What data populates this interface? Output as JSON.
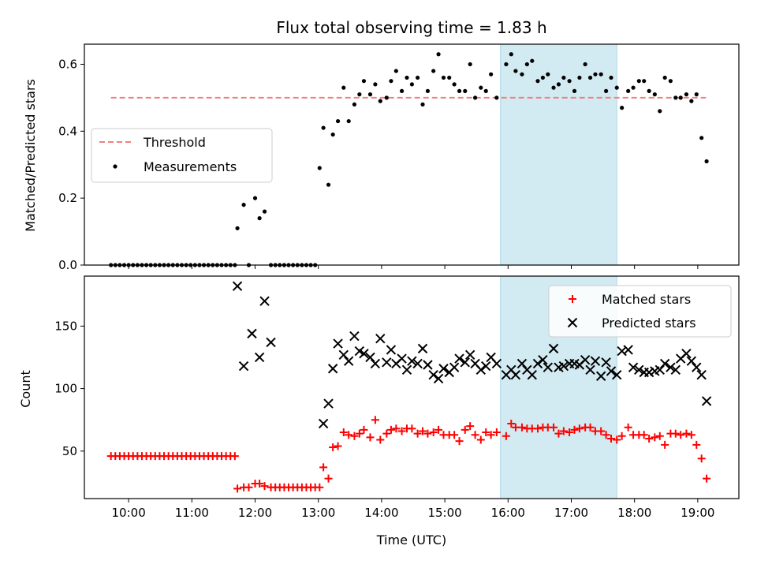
{
  "chart_data": [
    {
      "type": "scatter",
      "title": "Flux total observing time = 1.83 h",
      "xlabel": "",
      "ylabel": "Matched/Predicted stars",
      "ylim": [
        0,
        0.66
      ],
      "yticks": [
        0.0,
        0.2,
        0.4,
        0.6
      ],
      "ytick_labels": [
        "0.0",
        "0.2",
        "0.4",
        "0.6"
      ],
      "xlim": [
        9.3,
        19.65
      ],
      "xticks": [
        10,
        11,
        12,
        13,
        14,
        15,
        16,
        17,
        18,
        19
      ],
      "legend": {
        "position": "center-left",
        "entries": [
          "Threshold",
          "Measurements"
        ]
      },
      "highlight_span": {
        "x_start": 15.88,
        "x_end": 17.72,
        "color": "#add8e6"
      },
      "threshold": {
        "name": "Threshold",
        "y": 0.5,
        "x_start": 9.72,
        "x_end": 19.13,
        "color": "#f08080"
      },
      "series": [
        {
          "name": "Measurements",
          "color": "#000000",
          "marker": "dot",
          "x": [
            9.72,
            9.79,
            9.86,
            9.93,
            10.0,
            10.07,
            10.14,
            10.21,
            10.28,
            10.35,
            10.42,
            10.49,
            10.56,
            10.63,
            10.7,
            10.77,
            10.84,
            10.91,
            10.98,
            11.05,
            11.12,
            11.19,
            11.26,
            11.33,
            11.4,
            11.47,
            11.54,
            11.61,
            11.68,
            11.72,
            11.82,
            11.9,
            12.0,
            12.07,
            12.15,
            12.25,
            12.32,
            12.39,
            12.46,
            12.53,
            12.6,
            12.67,
            12.74,
            12.81,
            12.88,
            12.95,
            13.02,
            13.08,
            13.16,
            13.23,
            13.31,
            13.4,
            13.48,
            13.57,
            13.65,
            13.72,
            13.82,
            13.9,
            13.98,
            14.08,
            14.15,
            14.23,
            14.32,
            14.4,
            14.48,
            14.57,
            14.65,
            14.73,
            14.82,
            14.9,
            14.98,
            15.07,
            15.15,
            15.23,
            15.32,
            15.4,
            15.48,
            15.57,
            15.65,
            15.73,
            15.82,
            15.97,
            16.05,
            16.12,
            16.22,
            16.3,
            16.38,
            16.47,
            16.55,
            16.63,
            16.72,
            16.8,
            16.88,
            16.97,
            17.05,
            17.13,
            17.22,
            17.3,
            17.38,
            17.47,
            17.55,
            17.63,
            17.72,
            17.8,
            17.9,
            17.98,
            18.07,
            18.15,
            18.23,
            18.32,
            18.4,
            18.48,
            18.57,
            18.65,
            18.73,
            18.82,
            18.9,
            18.98,
            19.06,
            19.14
          ],
          "y": [
            0,
            0,
            0,
            0,
            0,
            0,
            0,
            0,
            0,
            0,
            0,
            0,
            0,
            0,
            0,
            0,
            0,
            0,
            0,
            0,
            0,
            0,
            0,
            0,
            0,
            0,
            0,
            0,
            0,
            0.11,
            0.18,
            0,
            0.2,
            0.14,
            0.16,
            0,
            0,
            0,
            0,
            0,
            0,
            0,
            0,
            0,
            0,
            0,
            0.29,
            0.41,
            0.24,
            0.39,
            0.43,
            0.53,
            0.43,
            0.48,
            0.51,
            0.55,
            0.51,
            0.54,
            0.49,
            0.5,
            0.55,
            0.58,
            0.52,
            0.56,
            0.54,
            0.56,
            0.48,
            0.52,
            0.58,
            0.63,
            0.56,
            0.56,
            0.54,
            0.52,
            0.52,
            0.6,
            0.5,
            0.53,
            0.52,
            0.57,
            0.5,
            0.6,
            0.63,
            0.58,
            0.57,
            0.6,
            0.61,
            0.55,
            0.56,
            0.57,
            0.53,
            0.54,
            0.56,
            0.55,
            0.52,
            0.56,
            0.6,
            0.56,
            0.57,
            0.57,
            0.52,
            0.56,
            0.53,
            0.47,
            0.52,
            0.53,
            0.55,
            0.55,
            0.52,
            0.51,
            0.46,
            0.56,
            0.55,
            0.5,
            0.5,
            0.51,
            0.49,
            0.51,
            0.38,
            0.31
          ]
        }
      ]
    },
    {
      "type": "scatter",
      "title": "",
      "xlabel": "Time (UTC)",
      "ylabel": "Count",
      "ylim": [
        12,
        190
      ],
      "yticks": [
        50,
        100,
        150
      ],
      "ytick_labels": [
        "50",
        "100",
        "150"
      ],
      "xlim": [
        9.3,
        19.65
      ],
      "xticks": [
        10,
        11,
        12,
        13,
        14,
        15,
        16,
        17,
        18,
        19
      ],
      "xtick_labels": [
        "10:00",
        "11:00",
        "12:00",
        "13:00",
        "14:00",
        "15:00",
        "16:00",
        "17:00",
        "18:00",
        "19:00"
      ],
      "legend": {
        "position": "top-right",
        "entries": [
          "Matched stars",
          "Predicted stars"
        ]
      },
      "highlight_span": {
        "x_start": 15.88,
        "x_end": 17.72,
        "color": "#add8e6"
      },
      "series": [
        {
          "name": "Matched stars",
          "color": "#ff0000",
          "marker": "plus",
          "x": [
            9.72,
            9.79,
            9.86,
            9.93,
            10.0,
            10.07,
            10.14,
            10.21,
            10.28,
            10.35,
            10.42,
            10.49,
            10.56,
            10.63,
            10.7,
            10.77,
            10.84,
            10.91,
            10.98,
            11.05,
            11.12,
            11.19,
            11.26,
            11.33,
            11.4,
            11.47,
            11.54,
            11.61,
            11.68,
            11.72,
            11.82,
            11.9,
            12.0,
            12.07,
            12.15,
            12.25,
            12.32,
            12.39,
            12.46,
            12.53,
            12.6,
            12.67,
            12.74,
            12.81,
            12.88,
            12.95,
            13.02,
            13.08,
            13.16,
            13.23,
            13.31,
            13.4,
            13.48,
            13.57,
            13.65,
            13.72,
            13.82,
            13.9,
            13.98,
            14.08,
            14.15,
            14.23,
            14.32,
            14.4,
            14.48,
            14.57,
            14.65,
            14.73,
            14.82,
            14.9,
            14.98,
            15.07,
            15.15,
            15.23,
            15.32,
            15.4,
            15.48,
            15.57,
            15.65,
            15.73,
            15.82,
            15.97,
            16.05,
            16.12,
            16.22,
            16.3,
            16.38,
            16.47,
            16.55,
            16.63,
            16.72,
            16.8,
            16.88,
            16.97,
            17.05,
            17.13,
            17.22,
            17.3,
            17.38,
            17.47,
            17.55,
            17.63,
            17.72,
            17.8,
            17.9,
            17.98,
            18.07,
            18.15,
            18.23,
            18.32,
            18.4,
            18.48,
            18.57,
            18.65,
            18.73,
            18.82,
            18.9,
            18.98,
            19.06,
            19.14
          ],
          "y": [
            46,
            46,
            46,
            46,
            46,
            46,
            46,
            46,
            46,
            46,
            46,
            46,
            46,
            46,
            46,
            46,
            46,
            46,
            46,
            46,
            46,
            46,
            46,
            46,
            46,
            46,
            46,
            46,
            46,
            20,
            21,
            21,
            24,
            24,
            22,
            21,
            21,
            21,
            21,
            21,
            21,
            21,
            21,
            21,
            21,
            21,
            21,
            37,
            28,
            53,
            54,
            65,
            63,
            62,
            64,
            67,
            61,
            75,
            59,
            64,
            67,
            68,
            66,
            68,
            68,
            64,
            66,
            64,
            65,
            67,
            63,
            63,
            63,
            58,
            67,
            70,
            63,
            59,
            65,
            63,
            65,
            62,
            72,
            69,
            69,
            68,
            68,
            68,
            69,
            69,
            69,
            64,
            66,
            65,
            67,
            68,
            69,
            69,
            66,
            66,
            63,
            60,
            59,
            62,
            69,
            63,
            63,
            63,
            60,
            61,
            62,
            55,
            64,
            64,
            63,
            64,
            63,
            55,
            44,
            28
          ]
        },
        {
          "name": "Predicted stars",
          "color": "#000000",
          "marker": "x",
          "x": [
            11.72,
            11.82,
            11.95,
            12.07,
            12.15,
            12.25,
            13.08,
            13.16,
            13.23,
            13.31,
            13.4,
            13.48,
            13.57,
            13.65,
            13.72,
            13.82,
            13.9,
            13.98,
            14.08,
            14.15,
            14.23,
            14.32,
            14.4,
            14.48,
            14.57,
            14.65,
            14.73,
            14.82,
            14.9,
            14.98,
            15.07,
            15.15,
            15.23,
            15.32,
            15.4,
            15.48,
            15.57,
            15.65,
            15.73,
            15.82,
            15.97,
            16.05,
            16.12,
            16.22,
            16.3,
            16.38,
            16.47,
            16.55,
            16.63,
            16.72,
            16.8,
            16.88,
            16.97,
            17.05,
            17.13,
            17.22,
            17.3,
            17.38,
            17.47,
            17.55,
            17.63,
            17.72,
            17.8,
            17.9,
            17.98,
            18.07,
            18.15,
            18.23,
            18.32,
            18.4,
            18.48,
            18.57,
            18.65,
            18.73,
            18.82,
            18.9,
            18.98,
            19.06,
            19.14
          ],
          "y": [
            182,
            118,
            144,
            125,
            170,
            137,
            72,
            88,
            116,
            136,
            127,
            122,
            142,
            130,
            128,
            125,
            120,
            140,
            121,
            131,
            120,
            124,
            115,
            122,
            120,
            132,
            119,
            111,
            108,
            116,
            113,
            117,
            124,
            121,
            127,
            120,
            115,
            118,
            125,
            120,
            111,
            115,
            111,
            120,
            115,
            111,
            120,
            123,
            117,
            132,
            117,
            118,
            120,
            120,
            119,
            123,
            115,
            122,
            110,
            121,
            114,
            111,
            130,
            131,
            117,
            115,
            113,
            113,
            114,
            115,
            120,
            117,
            115,
            124,
            128,
            122,
            117,
            111,
            90
          ]
        }
      ]
    }
  ]
}
